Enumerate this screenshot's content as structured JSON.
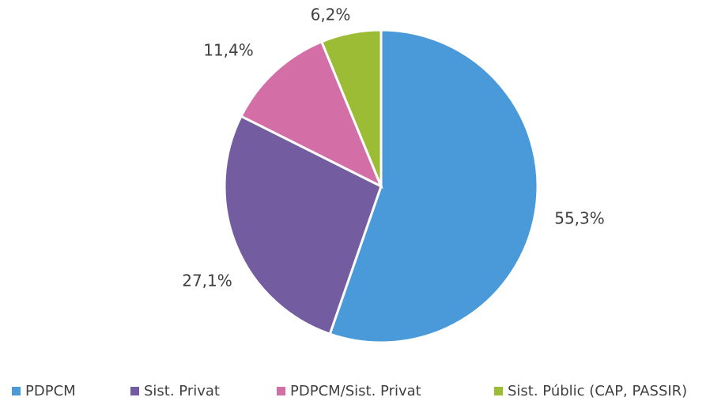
{
  "chart_data": {
    "type": "pie",
    "categories": [
      "PDPCM",
      "Sist. Privat",
      "PDPCM/Sist. Privat",
      "Sist. Públic (CAP, PASSIR)"
    ],
    "values": [
      55.3,
      27.1,
      11.4,
      6.2
    ],
    "value_labels": [
      "55,3%",
      "27,1%",
      "11,4%",
      "6,2%"
    ],
    "colors": [
      "#4a9ad9",
      "#735ca0",
      "#d36fa6",
      "#9dbc35"
    ],
    "legend": "bottom"
  }
}
